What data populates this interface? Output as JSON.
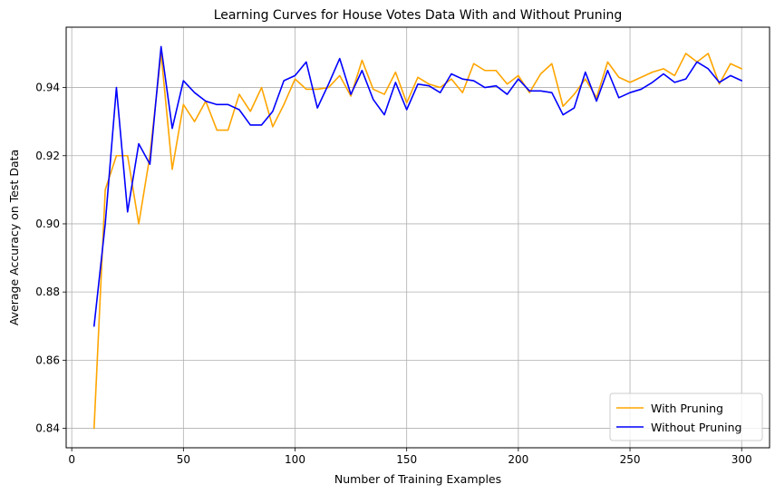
{
  "chart_data": {
    "type": "line",
    "title": "Learning Curves for House Votes Data With and Without Pruning",
    "xlabel": "Number of Training Examples",
    "ylabel": "Average Accuracy on Test Data",
    "xlim": [
      -2.5,
      312.5
    ],
    "ylim": [
      0.8343,
      0.9577
    ],
    "xticks": [
      0,
      50,
      100,
      150,
      200,
      250,
      300
    ],
    "yticks": [
      0.84,
      0.86,
      0.88,
      0.9,
      0.92,
      0.94
    ],
    "xtick_labels": [
      "0",
      "50",
      "100",
      "150",
      "200",
      "250",
      "300"
    ],
    "ytick_labels": [
      "0.84",
      "0.86",
      "0.88",
      "0.90",
      "0.92",
      "0.94"
    ],
    "grid": true,
    "legend_position": "lower-right",
    "x": [
      10,
      15,
      20,
      25,
      30,
      35,
      40,
      45,
      50,
      55,
      60,
      65,
      70,
      75,
      80,
      85,
      90,
      95,
      100,
      105,
      110,
      115,
      120,
      125,
      130,
      135,
      140,
      145,
      150,
      155,
      160,
      165,
      170,
      175,
      180,
      185,
      190,
      195,
      200,
      205,
      210,
      215,
      220,
      225,
      230,
      235,
      240,
      245,
      250,
      255,
      260,
      265,
      270,
      275,
      280,
      285,
      290,
      295,
      300
    ],
    "series": [
      {
        "name": "With Pruning",
        "color": "#FFA500",
        "values": [
          0.84,
          0.91,
          0.92,
          0.92,
          0.9,
          0.92,
          0.95,
          0.916,
          0.935,
          0.93,
          0.936,
          0.9275,
          0.9275,
          0.938,
          0.933,
          0.94,
          0.9285,
          0.935,
          0.9425,
          0.9395,
          0.9395,
          0.94,
          0.9435,
          0.9375,
          0.948,
          0.9395,
          0.938,
          0.9445,
          0.9355,
          0.943,
          0.941,
          0.94,
          0.9425,
          0.9385,
          0.947,
          0.945,
          0.945,
          0.941,
          0.9435,
          0.9385,
          0.944,
          0.947,
          0.9345,
          0.938,
          0.9425,
          0.937,
          0.9475,
          0.943,
          0.9415,
          0.943,
          0.9445,
          0.9455,
          0.9435,
          0.95,
          0.9475,
          0.95,
          0.941,
          0.947,
          0.9455
        ]
      },
      {
        "name": "Without Pruning",
        "color": "#0000FF",
        "values": [
          0.87,
          0.9,
          0.94,
          0.9035,
          0.9235,
          0.9175,
          0.952,
          0.928,
          0.942,
          0.9385,
          0.936,
          0.935,
          0.935,
          0.9335,
          0.929,
          0.929,
          0.933,
          0.942,
          0.9435,
          0.9475,
          0.934,
          0.941,
          0.9485,
          0.938,
          0.945,
          0.9365,
          0.932,
          0.9415,
          0.9335,
          0.941,
          0.9405,
          0.9385,
          0.944,
          0.9425,
          0.942,
          0.94,
          0.9405,
          0.938,
          0.9425,
          0.939,
          0.939,
          0.9385,
          0.932,
          0.934,
          0.9445,
          0.936,
          0.945,
          0.937,
          0.9385,
          0.9395,
          0.9415,
          0.944,
          0.9415,
          0.9425,
          0.9475,
          0.9455,
          0.9415,
          0.9435,
          0.942
        ]
      }
    ]
  }
}
